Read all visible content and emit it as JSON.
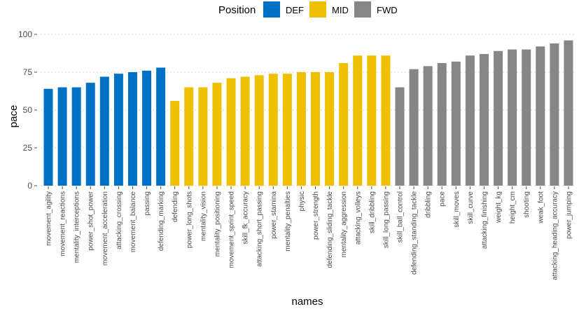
{
  "chart_data": {
    "type": "bar",
    "xlabel": "names",
    "ylabel": "pace",
    "ylim": [
      0,
      100
    ],
    "yticks": [
      0,
      25,
      50,
      75,
      100
    ],
    "ytick_labels": [
      "0",
      "25",
      "50",
      "75",
      "100"
    ],
    "grid": "horizontal dotted",
    "legend": {
      "title": "Position",
      "placement": "top",
      "entries": [
        {
          "label": "DEF",
          "color": "#0072C6"
        },
        {
          "label": "MID",
          "color": "#EFC000"
        },
        {
          "label": "FWD",
          "color": "#868686"
        }
      ]
    },
    "categories": [
      "movement_agility",
      "movement_reactions",
      "mentality_interceptions",
      "power_shot_power",
      "movement_acceleration",
      "attacking_crossing",
      "movement_balance",
      "passing",
      "defending_marking",
      "defending",
      "power_long_shots",
      "mentality_vision",
      "mentality_positioning",
      "movement_sprint_speed",
      "skill_fk_accuracy",
      "attacking_short_passing",
      "power_stamina",
      "mentality_penalties",
      "physic",
      "power_strength",
      "defending_sliding_tackle",
      "mentality_aggression",
      "attacking_volleys",
      "skill_dribbling",
      "skill_long_passing",
      "skill_ball_control",
      "defending_standing_tackle",
      "dribbling",
      "pace",
      "skill_moves",
      "skill_curve",
      "attacking_finishing",
      "weight_kg",
      "height_cm",
      "shooting",
      "weak_foot",
      "attacking_heading_accuracy",
      "power_jumping"
    ],
    "values": [
      64,
      65,
      65,
      68,
      72,
      74,
      75,
      76,
      78,
      56,
      65,
      65,
      68,
      71,
      72,
      73,
      74,
      74,
      75,
      75,
      75,
      81,
      86,
      86,
      86,
      65,
      77,
      79,
      81,
      82,
      86,
      87,
      89,
      90,
      90,
      92,
      94,
      96
    ],
    "groups": [
      "DEF",
      "DEF",
      "DEF",
      "DEF",
      "DEF",
      "DEF",
      "DEF",
      "DEF",
      "DEF",
      "MID",
      "MID",
      "MID",
      "MID",
      "MID",
      "MID",
      "MID",
      "MID",
      "MID",
      "MID",
      "MID",
      "MID",
      "MID",
      "MID",
      "MID",
      "MID",
      "FWD",
      "FWD",
      "FWD",
      "FWD",
      "FWD",
      "FWD",
      "FWD",
      "FWD",
      "FWD",
      "FWD",
      "FWD",
      "FWD",
      "FWD"
    ]
  }
}
